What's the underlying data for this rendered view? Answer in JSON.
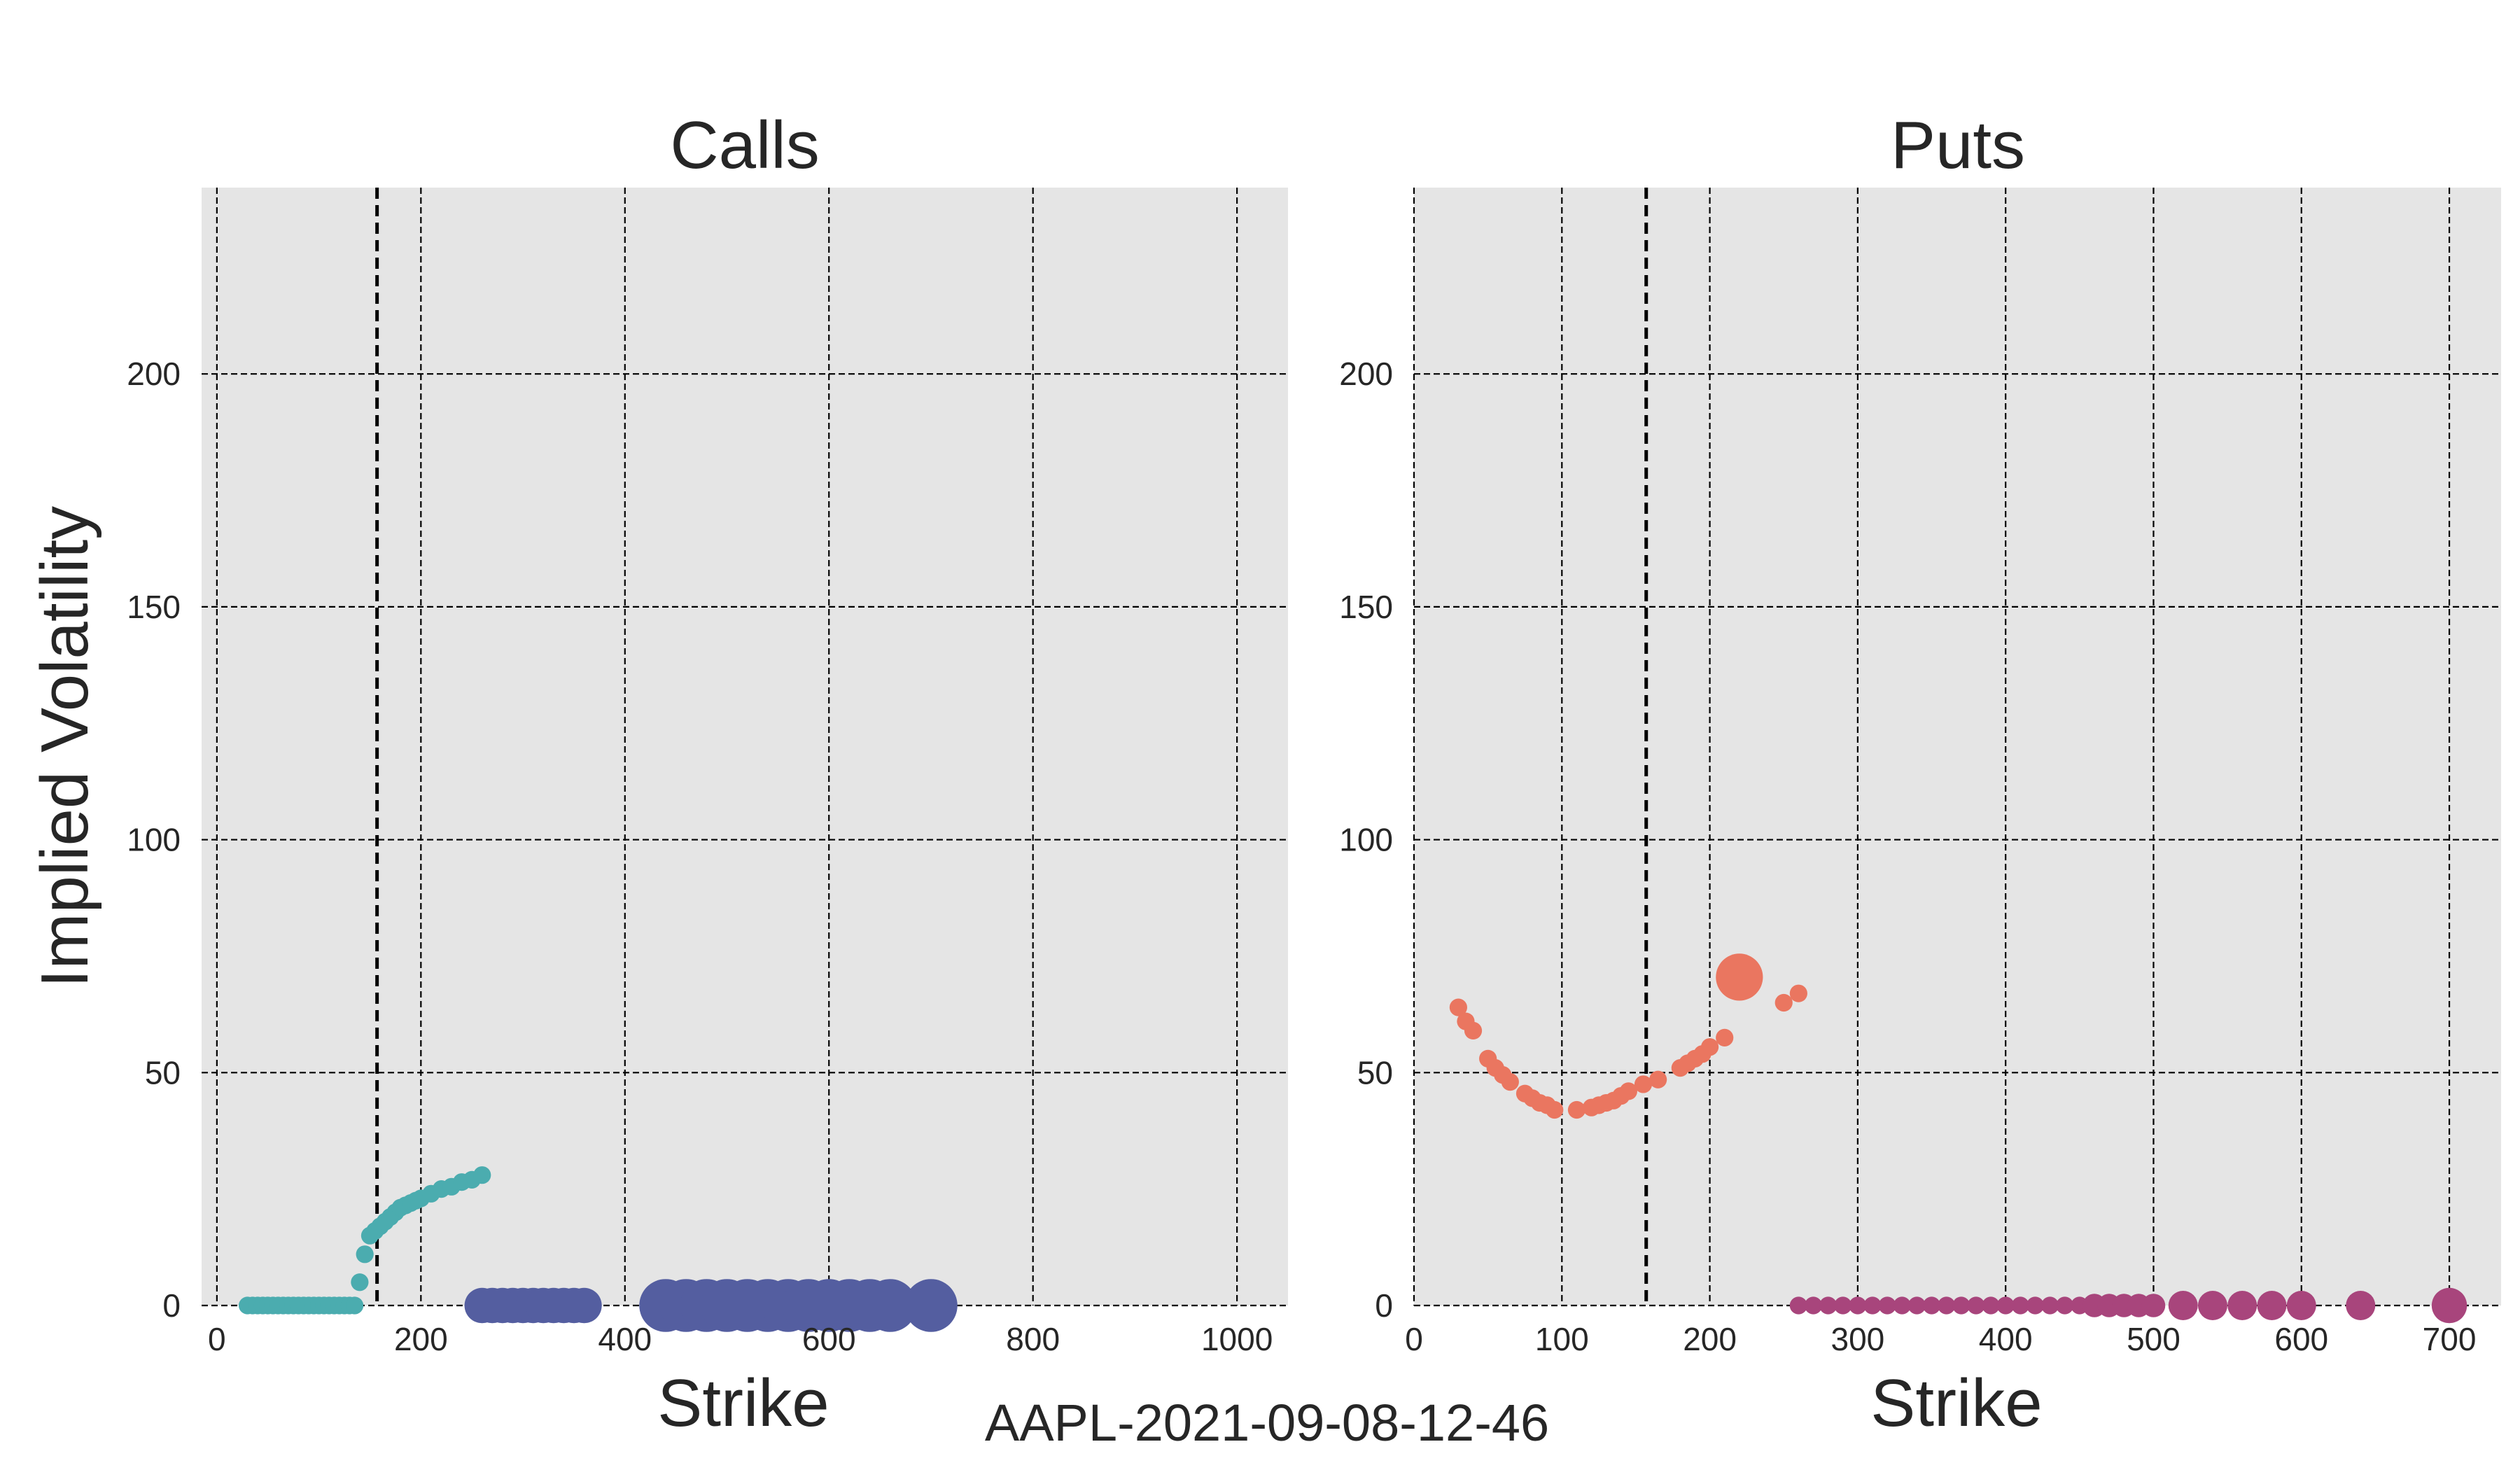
{
  "caption": "AAPL-2021-09-08-12-46",
  "chart_data": [
    {
      "type": "scatter",
      "title": "Calls",
      "xlabel": "Strike",
      "ylabel": "Implied Volatility",
      "xlim": [
        -15,
        1050
      ],
      "ylim": [
        0,
        240
      ],
      "xticks": [
        0,
        200,
        400,
        600,
        800,
        1000
      ],
      "yticks": [
        0,
        50,
        100,
        150,
        200
      ],
      "grid": true,
      "reference_line_x": 157,
      "series": [
        {
          "color": "#4bacaf",
          "x": [
            30,
            35,
            40,
            45,
            50,
            55,
            60,
            65,
            70,
            75,
            80,
            85,
            90,
            95,
            100,
            105,
            110,
            115,
            120,
            125,
            130,
            135,
            140,
            145,
            150,
            155,
            160,
            165,
            170,
            175,
            180,
            185,
            190,
            195,
            200,
            210,
            220,
            230,
            240,
            250,
            260
          ],
          "y": [
            0,
            0,
            0,
            0,
            0,
            0,
            0,
            0,
            0,
            0,
            0,
            0,
            0,
            0,
            0,
            0,
            0,
            0,
            0,
            0,
            0,
            0,
            5,
            11,
            15,
            16,
            17,
            18,
            19,
            20,
            21,
            21.5,
            22,
            22.5,
            23,
            24,
            25,
            25.5,
            26.5,
            27,
            28
          ],
          "size": [
            3,
            3,
            3,
            3,
            3,
            3,
            3,
            3,
            3,
            3,
            3,
            3,
            3,
            3,
            3,
            3,
            3,
            3,
            3,
            3,
            3,
            3,
            3,
            3,
            3,
            3,
            3,
            3,
            3,
            3,
            3,
            3,
            3,
            3,
            3,
            3,
            3,
            3,
            3,
            3,
            3
          ]
        },
        {
          "color": "#545ea0",
          "x": [
            260,
            270,
            280,
            290,
            300,
            310,
            320,
            330,
            340,
            350,
            360,
            440,
            460,
            480,
            500,
            520,
            540,
            560,
            580,
            600,
            620,
            640,
            660,
            700
          ],
          "y": [
            0,
            0,
            0,
            0,
            0,
            0,
            0,
            0,
            0,
            0,
            0,
            0,
            0,
            0,
            0,
            0,
            0,
            0,
            0,
            0,
            0,
            0,
            0,
            0
          ],
          "size": [
            6,
            6,
            6,
            6,
            6,
            6,
            6,
            6,
            6,
            6,
            6,
            9,
            9,
            9,
            9,
            9,
            9,
            9,
            9,
            9,
            9,
            9,
            9,
            9
          ]
        }
      ]
    },
    {
      "type": "scatter",
      "title": "Puts",
      "xlabel": "Strike",
      "ylabel": "",
      "xlim": [
        0,
        735
      ],
      "ylim": [
        0,
        240
      ],
      "xticks": [
        0,
        100,
        200,
        300,
        400,
        500,
        600,
        700
      ],
      "yticks": [
        0,
        50,
        100,
        150,
        200
      ],
      "grid": true,
      "reference_line_x": 157,
      "series": [
        {
          "color": "#ea7660",
          "x": [
            30,
            35,
            40,
            50,
            55,
            60,
            65,
            75,
            80,
            85,
            90,
            95,
            110,
            120,
            125,
            130,
            135,
            140,
            145,
            155,
            165,
            180,
            185,
            190,
            195,
            200,
            210,
            220,
            250,
            260
          ],
          "y": [
            64,
            61,
            59,
            53,
            51,
            49.5,
            48,
            45.5,
            44.5,
            43.5,
            43,
            42,
            42,
            42.5,
            43,
            43.5,
            44,
            45,
            46,
            47.5,
            48.5,
            51,
            52,
            53,
            54,
            55.5,
            57.5,
            70.5,
            65,
            67
          ],
          "size": [
            3,
            3,
            3,
            3,
            3,
            3,
            3,
            3,
            3,
            3,
            3,
            3,
            3,
            3,
            3,
            3,
            3,
            3,
            3,
            3,
            3,
            3,
            3,
            3,
            3,
            3,
            3,
            8,
            3,
            3
          ]
        },
        {
          "color": "#a8457c",
          "x": [
            260,
            270,
            280,
            290,
            300,
            310,
            320,
            330,
            340,
            350,
            360,
            370,
            380,
            390,
            400,
            410,
            420,
            430,
            440,
            450,
            460,
            470,
            480,
            490,
            500,
            520,
            540,
            560,
            580,
            600,
            640,
            700
          ],
          "y": [
            0,
            0,
            0,
            0,
            0,
            0,
            0,
            0,
            0,
            0,
            0,
            0,
            0,
            0,
            0,
            0,
            0,
            0,
            0,
            0,
            0,
            0,
            0,
            0,
            0,
            0,
            0,
            0,
            0,
            0,
            0,
            0
          ],
          "size": [
            3,
            3,
            3,
            3,
            3,
            3,
            3,
            3,
            3,
            3,
            3,
            3,
            3,
            3,
            3,
            3,
            3,
            3,
            3,
            3,
            4,
            4,
            4,
            4,
            4,
            5,
            5,
            5,
            5,
            5,
            5,
            6
          ]
        }
      ]
    }
  ]
}
